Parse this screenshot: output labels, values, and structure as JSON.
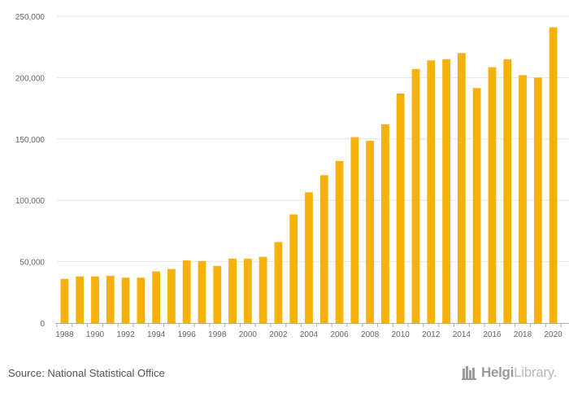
{
  "chart_data": {
    "type": "bar",
    "title": "",
    "xlabel": "",
    "ylabel": "",
    "ylim": [
      0,
      250000
    ],
    "yticks": [
      0,
      50000,
      100000,
      150000,
      200000,
      250000
    ],
    "ytick_labels": [
      "0",
      "50,000",
      "100,000",
      "150,000",
      "200,000",
      "250,000"
    ],
    "xtick_labels": [
      "1988",
      "1990",
      "1992",
      "1994",
      "1996",
      "1998",
      "2000",
      "2002",
      "2004",
      "2006",
      "2008",
      "2010",
      "2012",
      "2014",
      "2016",
      "2018",
      "2020"
    ],
    "categories": [
      "1988",
      "1989",
      "1990",
      "1991",
      "1992",
      "1993",
      "1994",
      "1995",
      "1996",
      "1997",
      "1998",
      "1999",
      "2000",
      "2001",
      "2002",
      "2003",
      "2004",
      "2005",
      "2006",
      "2007",
      "2008",
      "2009",
      "2010",
      "2011",
      "2012",
      "2013",
      "2014",
      "2015",
      "2016",
      "2017",
      "2018",
      "2019",
      "2020"
    ],
    "values": [
      36000,
      38000,
      38000,
      38500,
      37000,
      37000,
      42000,
      44000,
      51000,
      50500,
      46500,
      52500,
      52500,
      54000,
      66000,
      88500,
      106500,
      120500,
      132000,
      151500,
      148500,
      162000,
      187000,
      207000,
      214000,
      215000,
      220000,
      191500,
      208500,
      215000,
      202000,
      200000,
      241000
    ],
    "bar_color": "#f6b10a",
    "grid": true
  },
  "footer": {
    "source": "Source: National Statistical Office",
    "brand_bold": "Helgi",
    "brand_light": "Library."
  },
  "colors": {
    "axis_text": "#666666",
    "gridline": "#e6e6e6"
  }
}
